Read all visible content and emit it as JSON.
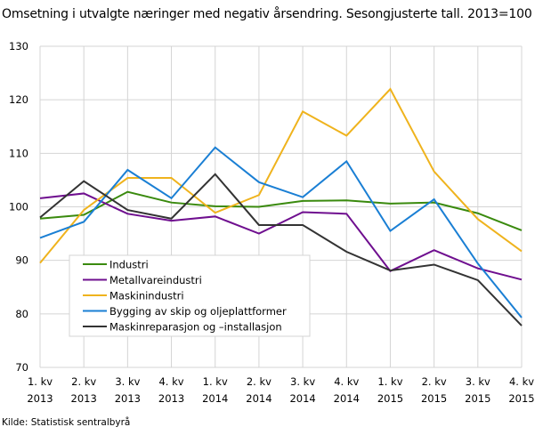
{
  "chart_data": {
    "type": "line",
    "title": "Omsetning i utvalgte næringer med negativ årsendring. Sesongjusterte tall. 2013=100",
    "source": "Kilde: Statistisk sentralbyrå",
    "categories": [
      [
        "1. kv",
        "2013"
      ],
      [
        "2. kv",
        "2013"
      ],
      [
        "3. kv",
        "2013"
      ],
      [
        "4. kv",
        "2013"
      ],
      [
        "1. kv",
        "2014"
      ],
      [
        "2. kv",
        "2014"
      ],
      [
        "3. kv",
        "2014"
      ],
      [
        "4. kv",
        "2014"
      ],
      [
        "1. kv",
        "2015"
      ],
      [
        "2. kv",
        "2015"
      ],
      [
        "3. kv",
        "2015"
      ],
      [
        "4. kv",
        "2015"
      ]
    ],
    "ylim": [
      70,
      130
    ],
    "yticks": [
      70,
      80,
      90,
      100,
      110,
      120,
      130
    ],
    "grid": true,
    "legend_placement": "bottom-left",
    "series": [
      {
        "name": "Industri",
        "color": "#3a8a0e",
        "values": [
          97.8,
          98.5,
          102.8,
          100.8,
          100.1,
          100.0,
          101.1,
          101.2,
          100.6,
          100.8,
          98.8,
          95.6
        ]
      },
      {
        "name": "Metallvareindustri",
        "color": "#6f0f8f",
        "values": [
          101.6,
          102.5,
          98.7,
          97.4,
          98.2,
          95.0,
          99.0,
          98.7,
          88.0,
          91.9,
          88.5,
          86.4
        ]
      },
      {
        "name": "Maskinindustri",
        "color": "#efb31d",
        "values": [
          89.5,
          99.4,
          105.4,
          105.4,
          98.9,
          102.2,
          117.8,
          113.3,
          122.0,
          106.6,
          97.7,
          91.7
        ]
      },
      {
        "name": "Bygging av skip og oljeplattformer",
        "color": "#1a7fd4",
        "values": [
          94.2,
          97.2,
          106.9,
          101.6,
          111.1,
          104.6,
          101.8,
          108.5,
          95.5,
          101.4,
          89.4,
          79.3
        ]
      },
      {
        "name": "Maskinreparasjon  og –installasjon",
        "color": "#333333",
        "values": [
          98.0,
          104.8,
          99.4,
          97.8,
          106.1,
          96.6,
          96.6,
          91.6,
          88.1,
          89.2,
          86.3,
          77.8
        ]
      }
    ]
  }
}
